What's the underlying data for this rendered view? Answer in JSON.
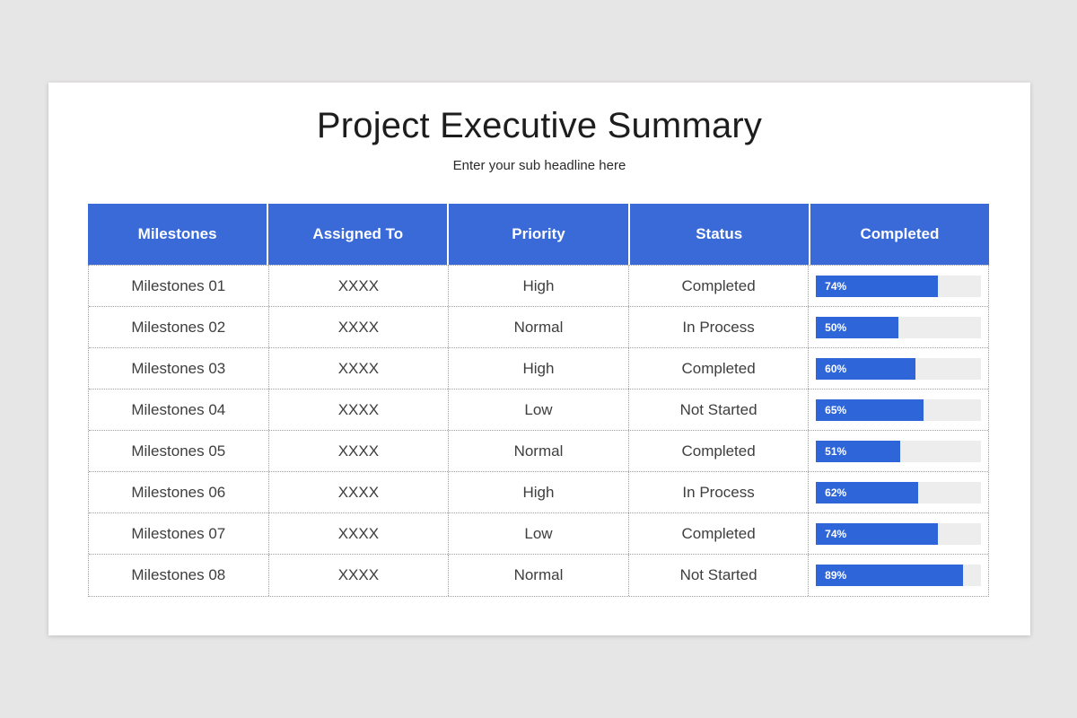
{
  "slide": {
    "title": "Project Executive Summary",
    "subtitle": "Enter your sub headline here"
  },
  "colors": {
    "page_background": "#e7e6e6",
    "card_background": "#ffffff",
    "header_blue": "#3a6ad8",
    "bar_blue": "#2e65d9",
    "bar_track": "#ededed",
    "cell_text": "#3e3e3e",
    "border": "#9f9f9f"
  },
  "table": {
    "columns": [
      {
        "label": "Milestones"
      },
      {
        "label": "Assigned To"
      },
      {
        "label": "Priority"
      },
      {
        "label": "Status"
      },
      {
        "label": "Completed"
      }
    ],
    "rows": [
      {
        "milestone": "Milestones 01",
        "assigned_to": "XXXX",
        "priority": "High",
        "status": "Completed",
        "completed_pct": 74
      },
      {
        "milestone": "Milestones 02",
        "assigned_to": "XXXX",
        "priority": "Normal",
        "status": "In Process",
        "completed_pct": 50
      },
      {
        "milestone": "Milestones 03",
        "assigned_to": "XXXX",
        "priority": "High",
        "status": "Completed",
        "completed_pct": 60
      },
      {
        "milestone": "Milestones 04",
        "assigned_to": "XXXX",
        "priority": "Low",
        "status": "Not Started",
        "completed_pct": 65
      },
      {
        "milestone": "Milestones 05",
        "assigned_to": "XXXX",
        "priority": "Normal",
        "status": "Completed",
        "completed_pct": 51
      },
      {
        "milestone": "Milestones 06",
        "assigned_to": "XXXX",
        "priority": "High",
        "status": "In Process",
        "completed_pct": 62
      },
      {
        "milestone": "Milestones 07",
        "assigned_to": "XXXX",
        "priority": "Low",
        "status": "Completed",
        "completed_pct": 74
      },
      {
        "milestone": "Milestones 08",
        "assigned_to": "XXXX",
        "priority": "Normal",
        "status": "Not Started",
        "completed_pct": 89
      }
    ]
  }
}
